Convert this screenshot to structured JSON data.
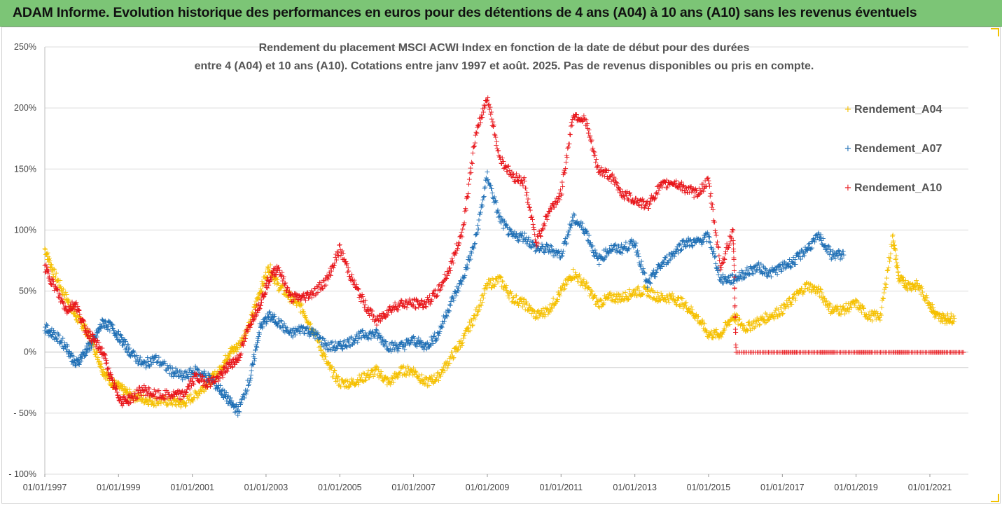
{
  "banner": {
    "title": "ADAM Informe. Evolution historique des performances en euros pour des détentions de 4 ans (A04) à 10 ans (A10) sans les revenus éventuels",
    "color": "#7cc576"
  },
  "chart_data": {
    "type": "scatter",
    "title_line1": "Rendement du placement MSCI ACWI Index en fonction de la date de début pour des durées",
    "title_line2": "entre 4 (A04) et 10 ans (A10).  Cotations entre janv 1997 et août. 2025. Pas de revenus disponibles ou pris en compte.",
    "xlabel": "",
    "ylabel": "",
    "xlim": [
      "1997-01-01",
      "2022-01-01"
    ],
    "ylim": [
      -100,
      250
    ],
    "y_ticks": [
      {
        "value": 250,
        "label": "250%"
      },
      {
        "value": 200,
        "label": "200%"
      },
      {
        "value": 150,
        "label": "150%"
      },
      {
        "value": 100,
        "label": "100%"
      },
      {
        "value": 50,
        "label": "50%"
      },
      {
        "value": 0,
        "label": "0%"
      },
      {
        "value": -50,
        "label": "- 50%"
      },
      {
        "value": -100,
        "label": "- 100%"
      }
    ],
    "x_ticks": [
      {
        "value": "1997-01-01",
        "label": "01/01/1997"
      },
      {
        "value": "1999-01-01",
        "label": "01/01/1999"
      },
      {
        "value": "2001-01-01",
        "label": "01/01/2001"
      },
      {
        "value": "2003-01-01",
        "label": "01/01/2003"
      },
      {
        "value": "2005-01-01",
        "label": "01/01/2005"
      },
      {
        "value": "2007-01-01",
        "label": "01/01/2007"
      },
      {
        "value": "2009-01-01",
        "label": "01/01/2009"
      },
      {
        "value": "2011-01-01",
        "label": "01/01/2011"
      },
      {
        "value": "2013-01-01",
        "label": "01/01/2013"
      },
      {
        "value": "2015-01-01",
        "label": "01/01/2015"
      },
      {
        "value": "2017-01-01",
        "label": "01/01/2017"
      },
      {
        "value": "2019-01-01",
        "label": "01/01/2019"
      },
      {
        "value": "2021-01-01",
        "label": "01/01/2021"
      }
    ],
    "grid": "horizontal",
    "legend_position": "top-right",
    "marker": "+",
    "series": [
      {
        "name": "Rendement_A04",
        "color": "#f5c000",
        "points": [
          [
            "1997-01-01",
            85
          ],
          [
            "1997-04-01",
            65
          ],
          [
            "1997-08-01",
            45
          ],
          [
            "1997-11-01",
            30
          ],
          [
            "1998-02-01",
            20
          ],
          [
            "1998-05-01",
            5
          ],
          [
            "1998-08-01",
            -15
          ],
          [
            "1998-11-01",
            -25
          ],
          [
            "1999-02-01",
            -30
          ],
          [
            "1999-05-01",
            -35
          ],
          [
            "1999-09-01",
            -38
          ],
          [
            "2000-01-01",
            -40
          ],
          [
            "2000-06-01",
            -40
          ],
          [
            "2000-10-01",
            -42
          ],
          [
            "2001-02-01",
            -35
          ],
          [
            "2001-06-01",
            -25
          ],
          [
            "2001-10-01",
            -15
          ],
          [
            "2002-01-01",
            0
          ],
          [
            "2002-04-01",
            5
          ],
          [
            "2002-08-01",
            25
          ],
          [
            "2002-11-01",
            50
          ],
          [
            "2003-02-01",
            70
          ],
          [
            "2003-05-01",
            55
          ],
          [
            "2003-09-01",
            45
          ],
          [
            "2004-01-01",
            35
          ],
          [
            "2004-05-01",
            15
          ],
          [
            "2004-09-01",
            -10
          ],
          [
            "2005-01-01",
            -25
          ],
          [
            "2005-05-01",
            -25
          ],
          [
            "2005-09-01",
            -20
          ],
          [
            "2006-01-01",
            -15
          ],
          [
            "2006-05-01",
            -25
          ],
          [
            "2006-09-01",
            -15
          ],
          [
            "2007-01-01",
            -15
          ],
          [
            "2007-05-01",
            -25
          ],
          [
            "2007-09-01",
            -20
          ],
          [
            "2008-01-01",
            -5
          ],
          [
            "2008-05-01",
            10
          ],
          [
            "2008-09-01",
            30
          ],
          [
            "2009-01-01",
            55
          ],
          [
            "2009-05-01",
            60
          ],
          [
            "2009-09-01",
            45
          ],
          [
            "2010-01-01",
            40
          ],
          [
            "2010-05-01",
            30
          ],
          [
            "2010-09-01",
            35
          ],
          [
            "2011-01-01",
            50
          ],
          [
            "2011-05-01",
            65
          ],
          [
            "2011-09-01",
            55
          ],
          [
            "2012-01-01",
            40
          ],
          [
            "2012-05-01",
            45
          ],
          [
            "2012-09-01",
            45
          ],
          [
            "2013-01-01",
            50
          ],
          [
            "2013-05-01",
            50
          ],
          [
            "2013-09-01",
            45
          ],
          [
            "2014-01-01",
            45
          ],
          [
            "2014-05-01",
            40
          ],
          [
            "2014-09-01",
            30
          ],
          [
            "2015-01-01",
            15
          ],
          [
            "2015-05-01",
            15
          ],
          [
            "2015-09-01",
            30
          ],
          [
            "2016-01-01",
            20
          ],
          [
            "2016-05-01",
            25
          ],
          [
            "2016-09-01",
            30
          ],
          [
            "2017-01-01",
            35
          ],
          [
            "2017-05-01",
            45
          ],
          [
            "2017-09-01",
            55
          ],
          [
            "2018-01-01",
            50
          ],
          [
            "2018-05-01",
            35
          ],
          [
            "2018-09-01",
            35
          ],
          [
            "2019-01-01",
            40
          ],
          [
            "2019-05-01",
            30
          ],
          [
            "2019-09-01",
            30
          ],
          [
            "2020-01-01",
            95
          ],
          [
            "2020-03-01",
            60
          ],
          [
            "2020-06-01",
            55
          ],
          [
            "2020-09-01",
            55
          ],
          [
            "2021-01-01",
            40
          ],
          [
            "2021-03-01",
            30
          ],
          [
            "2021-06-01",
            28
          ],
          [
            "2021-09-01",
            28
          ]
        ]
      },
      {
        "name": "Rendement_A07",
        "color": "#1f6fb5",
        "points": [
          [
            "1997-01-01",
            20
          ],
          [
            "1997-04-01",
            15
          ],
          [
            "1997-08-01",
            5
          ],
          [
            "1997-11-01",
            -10
          ],
          [
            "1998-02-01",
            0
          ],
          [
            "1998-05-01",
            10
          ],
          [
            "1998-08-01",
            25
          ],
          [
            "1998-11-01",
            20
          ],
          [
            "1999-02-01",
            10
          ],
          [
            "1999-05-01",
            0
          ],
          [
            "1999-09-01",
            -10
          ],
          [
            "2000-01-01",
            -5
          ],
          [
            "2000-06-01",
            -15
          ],
          [
            "2000-10-01",
            -20
          ],
          [
            "2001-02-01",
            -15
          ],
          [
            "2001-06-01",
            -20
          ],
          [
            "2001-10-01",
            -30
          ],
          [
            "2002-01-01",
            -40
          ],
          [
            "2002-04-01",
            -48
          ],
          [
            "2002-08-01",
            -20
          ],
          [
            "2002-11-01",
            20
          ],
          [
            "2003-02-01",
            30
          ],
          [
            "2003-05-01",
            25
          ],
          [
            "2003-09-01",
            15
          ],
          [
            "2004-01-01",
            20
          ],
          [
            "2004-05-01",
            15
          ],
          [
            "2004-09-01",
            5
          ],
          [
            "2005-01-01",
            5
          ],
          [
            "2005-05-01",
            10
          ],
          [
            "2005-09-01",
            15
          ],
          [
            "2006-01-01",
            15
          ],
          [
            "2006-05-01",
            5
          ],
          [
            "2006-09-01",
            5
          ],
          [
            "2007-01-01",
            10
          ],
          [
            "2007-05-01",
            5
          ],
          [
            "2007-09-01",
            15
          ],
          [
            "2008-01-01",
            40
          ],
          [
            "2008-05-01",
            60
          ],
          [
            "2008-09-01",
            90
          ],
          [
            "2009-01-01",
            145
          ],
          [
            "2009-05-01",
            110
          ],
          [
            "2009-09-01",
            95
          ],
          [
            "2010-01-01",
            95
          ],
          [
            "2010-05-01",
            85
          ],
          [
            "2010-09-01",
            85
          ],
          [
            "2011-01-01",
            80
          ],
          [
            "2011-05-01",
            110
          ],
          [
            "2011-09-01",
            100
          ],
          [
            "2012-01-01",
            75
          ],
          [
            "2012-05-01",
            85
          ],
          [
            "2012-09-01",
            85
          ],
          [
            "2013-01-01",
            90
          ],
          [
            "2013-05-01",
            55
          ],
          [
            "2013-09-01",
            70
          ],
          [
            "2014-01-01",
            80
          ],
          [
            "2014-05-01",
            90
          ],
          [
            "2014-09-01",
            90
          ],
          [
            "2015-01-01",
            95
          ],
          [
            "2015-05-01",
            60
          ],
          [
            "2015-09-01",
            60
          ],
          [
            "2016-01-01",
            65
          ],
          [
            "2016-05-01",
            70
          ],
          [
            "2016-09-01",
            65
          ],
          [
            "2017-01-01",
            70
          ],
          [
            "2017-05-01",
            75
          ],
          [
            "2017-09-01",
            85
          ],
          [
            "2018-01-01",
            95
          ],
          [
            "2018-05-01",
            80
          ],
          [
            "2018-09-01",
            80
          ]
        ]
      },
      {
        "name": "Rendement_A10",
        "color": "#e8161b",
        "points": [
          [
            "1997-01-01",
            70
          ],
          [
            "1997-04-01",
            55
          ],
          [
            "1997-08-01",
            35
          ],
          [
            "1997-11-01",
            40
          ],
          [
            "1998-02-01",
            20
          ],
          [
            "1998-05-01",
            10
          ],
          [
            "1998-08-01",
            0
          ],
          [
            "1998-11-01",
            -25
          ],
          [
            "1999-02-01",
            -40
          ],
          [
            "1999-05-01",
            -38
          ],
          [
            "1999-09-01",
            -30
          ],
          [
            "2000-01-01",
            -35
          ],
          [
            "2000-06-01",
            -35
          ],
          [
            "2000-10-01",
            -35
          ],
          [
            "2001-02-01",
            -20
          ],
          [
            "2001-06-01",
            -25
          ],
          [
            "2001-10-01",
            -20
          ],
          [
            "2002-01-01",
            -10
          ],
          [
            "2002-04-01",
            -5
          ],
          [
            "2002-08-01",
            25
          ],
          [
            "2002-11-01",
            40
          ],
          [
            "2003-02-01",
            60
          ],
          [
            "2003-05-01",
            70
          ],
          [
            "2003-09-01",
            45
          ],
          [
            "2004-01-01",
            45
          ],
          [
            "2004-05-01",
            50
          ],
          [
            "2004-09-01",
            60
          ],
          [
            "2005-01-01",
            85
          ],
          [
            "2005-05-01",
            60
          ],
          [
            "2005-09-01",
            40
          ],
          [
            "2006-01-01",
            25
          ],
          [
            "2006-05-01",
            35
          ],
          [
            "2006-09-01",
            40
          ],
          [
            "2007-01-01",
            40
          ],
          [
            "2007-05-01",
            40
          ],
          [
            "2007-09-01",
            50
          ],
          [
            "2008-01-01",
            70
          ],
          [
            "2008-05-01",
            100
          ],
          [
            "2008-09-01",
            175
          ],
          [
            "2009-01-01",
            210
          ],
          [
            "2009-05-01",
            160
          ],
          [
            "2009-09-01",
            145
          ],
          [
            "2010-01-01",
            140
          ],
          [
            "2010-05-01",
            90
          ],
          [
            "2010-09-01",
            115
          ],
          [
            "2011-01-01",
            130
          ],
          [
            "2011-05-01",
            195
          ],
          [
            "2011-09-01",
            190
          ],
          [
            "2012-01-01",
            150
          ],
          [
            "2012-05-01",
            145
          ],
          [
            "2012-09-01",
            130
          ],
          [
            "2013-01-01",
            125
          ],
          [
            "2013-05-01",
            120
          ],
          [
            "2013-09-01",
            135
          ],
          [
            "2014-01-01",
            140
          ],
          [
            "2014-05-01",
            135
          ],
          [
            "2014-09-01",
            130
          ],
          [
            "2015-01-01",
            140
          ],
          [
            "2015-05-01",
            70
          ],
          [
            "2015-09-01",
            100
          ],
          [
            "2015-10-01",
            0
          ],
          [
            "2016-06-01",
            0
          ],
          [
            "2017-01-01",
            0
          ],
          [
            "2017-06-01",
            0
          ],
          [
            "2018-01-01",
            0
          ],
          [
            "2018-06-01",
            0
          ],
          [
            "2019-01-01",
            0
          ],
          [
            "2019-06-01",
            0
          ],
          [
            "2020-01-01",
            0
          ],
          [
            "2020-06-01",
            0
          ],
          [
            "2021-01-01",
            0
          ],
          [
            "2021-06-01",
            0
          ],
          [
            "2021-12-01",
            0
          ]
        ]
      }
    ]
  }
}
